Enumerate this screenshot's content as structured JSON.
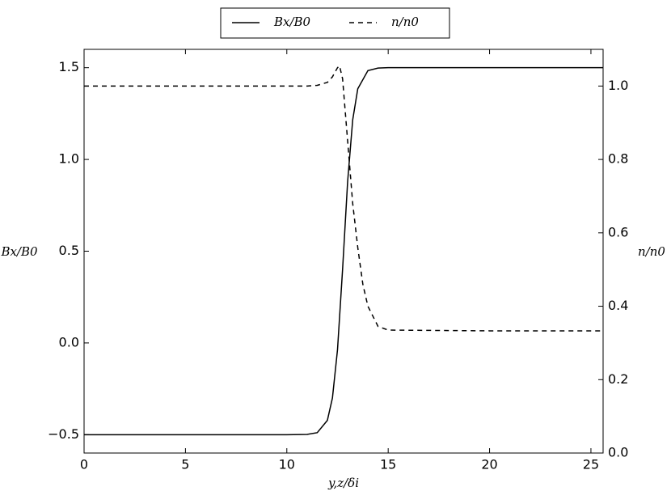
{
  "chart_data": {
    "type": "line",
    "xlabel": "y,z/δi",
    "ylabel": "Bx/B0",
    "y2label": "n/n0",
    "xlim": [
      0,
      25.6
    ],
    "xticks": [
      0,
      5,
      10,
      15,
      20,
      25
    ],
    "ylim": [
      -0.6,
      1.6
    ],
    "yticks": [
      {
        "value": -0.5,
        "label": "−0.5"
      },
      {
        "value": 0,
        "label": "0.0"
      },
      0.5,
      {
        "value": 1,
        "label": "1.0"
      },
      1.5
    ],
    "y2lim": [
      0,
      1.1
    ],
    "y2ticks": [
      {
        "value": 0,
        "label": "0.0"
      },
      0.2,
      0.4,
      0.6,
      0.8,
      {
        "value": 1,
        "label": "1.0"
      }
    ],
    "legend": "top-outside",
    "series": [
      {
        "name": "Bx/B0",
        "color": "#000000",
        "dash": "solid",
        "x": [
          0,
          5,
          10,
          11,
          11.5,
          12,
          12.25,
          12.5,
          12.75,
          13,
          13.25,
          13.5,
          14,
          14.5,
          15,
          20,
          25.6
        ],
        "values": [
          -0.5,
          -0.5,
          -0.5,
          -0.4985,
          -0.489,
          -0.422,
          -0.3,
          -0.037,
          0.4,
          0.88,
          1.216,
          1.385,
          1.484,
          1.498,
          1.5,
          1.5,
          1.5
        ]
      },
      {
        "name": "n/n0",
        "color": "#000000",
        "dash": "dashed",
        "axis": "y2",
        "x": [
          0,
          5,
          10,
          11,
          11.5,
          12,
          12.25,
          12.5,
          12.6,
          12.75,
          13,
          13.25,
          13.5,
          13.75,
          14,
          14.5,
          15,
          20,
          25.6
        ],
        "values": [
          1,
          1,
          1,
          1,
          1.002,
          1.01,
          1.025,
          1.05,
          1.055,
          1.02,
          0.85,
          0.68,
          0.56,
          0.46,
          0.4,
          0.345,
          0.335,
          0.333,
          0.333
        ]
      }
    ]
  }
}
